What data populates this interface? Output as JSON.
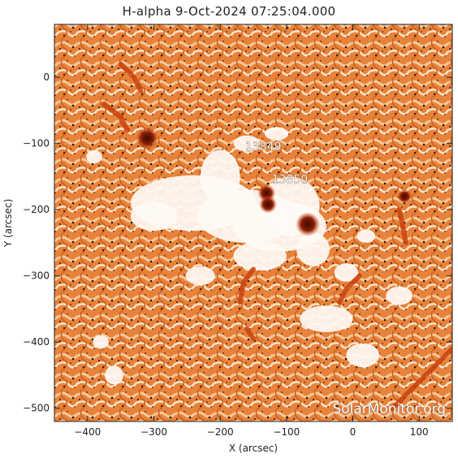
{
  "chart_data": {
    "type": "image",
    "title": "H-alpha   9-Oct-2024 07:25:04.000",
    "xlabel": "X (arcsec)",
    "ylabel": "Y (arcsec)",
    "xlim": [
      -450,
      150
    ],
    "ylim": [
      -520,
      80
    ],
    "x_ticks": [
      -400,
      -300,
      -200,
      -100,
      0,
      100
    ],
    "y_ticks": [
      0,
      -100,
      -200,
      -300,
      -400,
      -500
    ],
    "active_regions": [
      {
        "label": "13849",
        "x": -135,
        "y": -110
      },
      {
        "label": "13850",
        "x": -95,
        "y": -160
      }
    ],
    "watermark": "SolarMonitor.org",
    "colormap": "orange/white sunspot intensity"
  }
}
